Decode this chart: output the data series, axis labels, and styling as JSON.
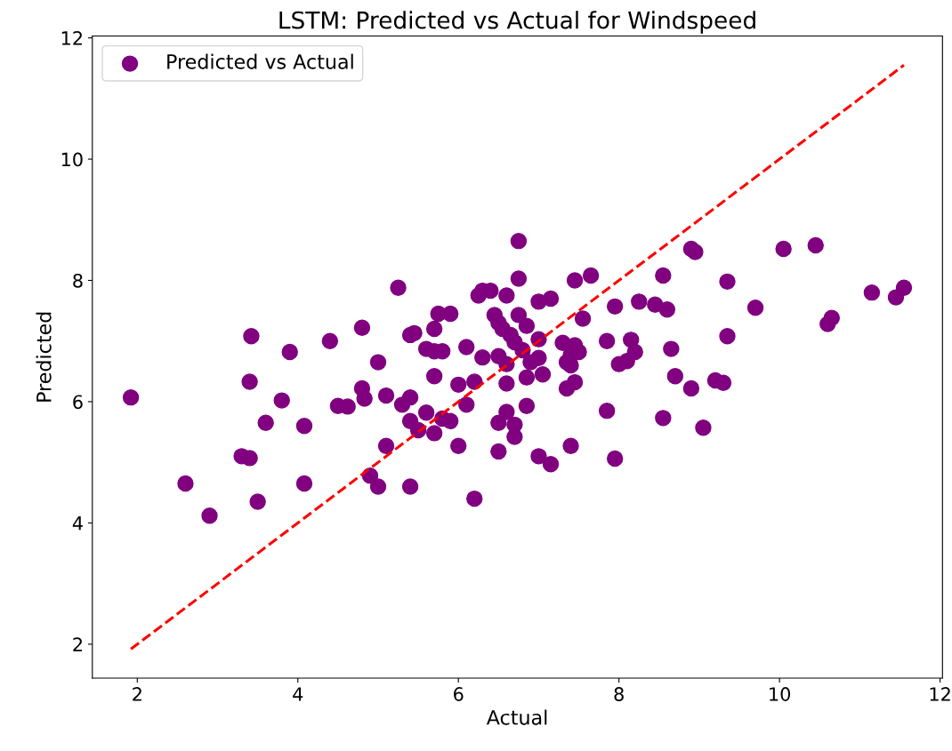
{
  "chart_data": {
    "type": "scatter",
    "title": "LSTM: Predicted vs Actual for Windspeed",
    "xlabel": "Actual",
    "ylabel": "Predicted",
    "xlim": [
      1.44,
      12.03
    ],
    "ylim": [
      1.44,
      12.03
    ],
    "xticks": [
      2,
      4,
      6,
      8,
      10,
      12
    ],
    "yticks": [
      2,
      4,
      6,
      8,
      10,
      12
    ],
    "grid": false,
    "legend": "top left",
    "series": [
      {
        "name": "Predicted vs Actual",
        "color": "#800080",
        "marker": "circle",
        "x": [
          1.92,
          2.6,
          2.9,
          3.3,
          3.4,
          3.4,
          3.42,
          3.5,
          3.6,
          3.8,
          3.9,
          4.08,
          4.08,
          4.4,
          4.5,
          4.62,
          4.8,
          4.8,
          4.83,
          4.9,
          5.0,
          5.0,
          5.1,
          5.1,
          5.25,
          5.3,
          5.4,
          5.45,
          5.4,
          5.4,
          5.4,
          5.5,
          5.6,
          5.6,
          5.7,
          5.75,
          5.7,
          5.7,
          5.7,
          5.8,
          5.8,
          5.9,
          5.9,
          6.0,
          6.0,
          6.1,
          6.1,
          6.2,
          6.2,
          6.25,
          6.3,
          6.3,
          6.4,
          6.45,
          6.5,
          6.5,
          6.5,
          6.5,
          6.55,
          6.6,
          6.6,
          6.6,
          6.6,
          6.65,
          6.7,
          6.7,
          6.7,
          6.75,
          6.75,
          6.75,
          6.8,
          6.85,
          6.85,
          6.85,
          6.9,
          7.0,
          7.0,
          7.0,
          7.0,
          7.05,
          7.15,
          7.15,
          7.3,
          7.35,
          7.35,
          7.4,
          7.4,
          7.4,
          7.45,
          7.45,
          7.45,
          7.5,
          7.55,
          7.65,
          7.85,
          7.85,
          7.95,
          7.95,
          8.0,
          8.1,
          8.15,
          8.2,
          8.25,
          8.45,
          8.55,
          8.55,
          8.6,
          8.65,
          8.7,
          8.9,
          8.9,
          8.95,
          9.05,
          9.2,
          9.3,
          9.35,
          9.35,
          9.7,
          10.05,
          10.45,
          10.6,
          10.65,
          11.15,
          11.45,
          11.55
        ],
        "values": [
          6.07,
          4.65,
          4.12,
          5.1,
          5.07,
          6.33,
          7.08,
          4.35,
          5.65,
          6.02,
          6.82,
          5.6,
          4.65,
          7.0,
          5.93,
          5.92,
          7.22,
          6.22,
          6.05,
          4.78,
          6.65,
          4.6,
          6.1,
          5.27,
          7.88,
          5.95,
          7.1,
          7.13,
          6.07,
          5.68,
          4.6,
          5.53,
          6.87,
          5.82,
          7.2,
          7.45,
          6.83,
          6.42,
          5.48,
          6.83,
          5.72,
          7.45,
          5.68,
          6.28,
          5.27,
          6.9,
          5.95,
          6.33,
          4.4,
          7.75,
          7.83,
          6.73,
          7.83,
          7.43,
          7.3,
          6.75,
          5.65,
          5.18,
          7.2,
          7.75,
          6.62,
          6.3,
          5.83,
          7.1,
          6.98,
          5.62,
          5.42,
          8.65,
          8.03,
          7.43,
          6.85,
          7.25,
          6.4,
          5.93,
          6.65,
          7.65,
          7.03,
          6.72,
          5.1,
          6.45,
          7.7,
          4.97,
          6.97,
          6.65,
          6.22,
          6.77,
          6.6,
          5.27,
          8.0,
          6.93,
          6.32,
          6.82,
          7.37,
          8.08,
          7.0,
          5.85,
          7.57,
          5.06,
          6.62,
          6.67,
          7.02,
          6.82,
          7.65,
          7.6,
          8.08,
          5.73,
          7.52,
          6.87,
          6.42,
          6.22,
          8.52,
          8.47,
          5.57,
          6.35,
          6.31,
          7.98,
          7.08,
          7.55,
          8.52,
          8.58,
          7.28,
          7.38,
          7.8,
          7.72,
          7.88
        ]
      },
      {
        "type": "line",
        "color": "#ff0000",
        "line_style": "dashed",
        "x": [
          1.92,
          11.55
        ],
        "values": [
          1.92,
          11.55
        ]
      }
    ]
  }
}
